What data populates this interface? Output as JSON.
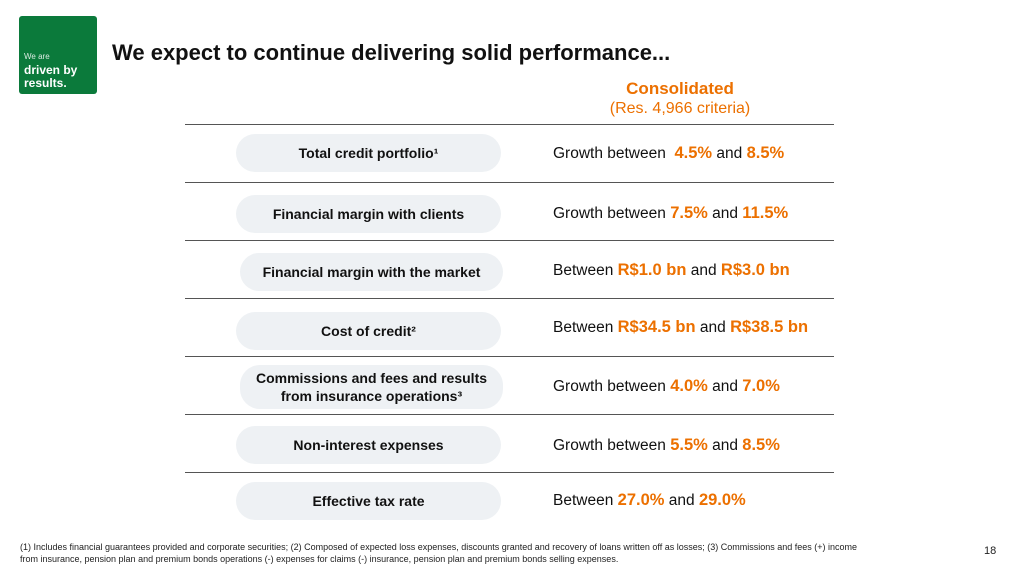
{
  "logo": {
    "line1": "We are",
    "line2": "driven by",
    "line3": "results."
  },
  "title": "We expect to continue delivering solid performance...",
  "column": {
    "heading": "Consolidated",
    "subheading": "(Res. 4,966 criteria)"
  },
  "rows": [
    {
      "label": "Total credit portfolio¹",
      "prefix": "Growth between",
      "low": "4.5%",
      "mid": "and",
      "high": "8.5%"
    },
    {
      "label": "Financial margin with clients",
      "prefix": "Growth between",
      "low": "7.5%",
      "mid": "and",
      "high": "11.5%"
    },
    {
      "label": "Financial margin with the market",
      "prefix": "Between",
      "low": "R$1.0 bn",
      "mid": "and",
      "high": "R$3.0 bn"
    },
    {
      "label": "Cost of credit²",
      "prefix": "Between",
      "low": "R$34.5 bn",
      "mid": "and",
      "high": "R$38.5 bn"
    },
    {
      "label_line1": "Commissions and fees and results",
      "label_line2": "from insurance operations³",
      "prefix": "Growth between",
      "low": "4.0%",
      "mid": "and",
      "high": "7.0%"
    },
    {
      "label": "Non-interest expenses",
      "prefix": "Growth between",
      "low": "5.5%",
      "mid": "and",
      "high": "8.5%"
    },
    {
      "label": "Effective tax rate",
      "prefix": "Between",
      "low": "27.0%",
      "mid": "and",
      "high": "29.0%"
    }
  ],
  "footnote_line1": "(1) Includes financial guarantees provided and corporate securities; (2) Composed of expected loss expenses, discounts granted and recovery of loans written off as losses; (3) Commissions and fees (+) income",
  "footnote_line2": "from insurance, pension plan and premium bonds operations (-) expenses for claims (-) insurance, pension plan and premium bonds selling expenses.",
  "page_number": "18",
  "colors": {
    "brand_green": "#0b7a3b",
    "accent_orange": "#ec7000",
    "pill_bg": "#eef1f4"
  }
}
